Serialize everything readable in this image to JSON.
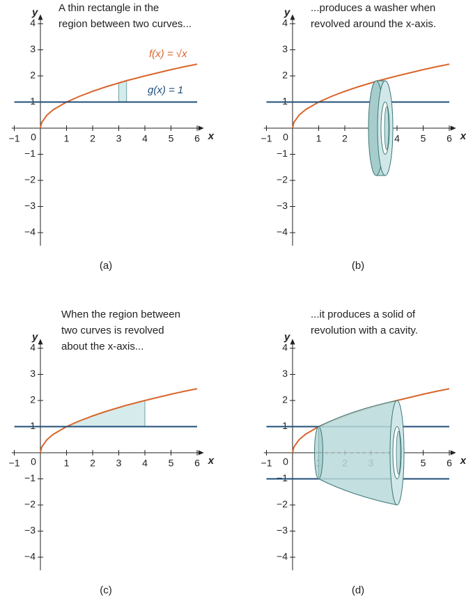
{
  "chart_data": [
    {
      "type": "line",
      "annotation": [
        "A thin rectangle in the",
        "region between two curves..."
      ],
      "caption": "(a)",
      "x_label": "x",
      "y_label": "y",
      "xlim": [
        -1.1,
        6.1
      ],
      "ylim": [
        -4.5,
        4.2
      ],
      "xticks": [
        {
          "value": -1,
          "label": "−1"
        },
        0,
        1,
        2,
        3,
        4,
        5,
        6
      ],
      "yticks": [
        {
          "value": -4,
          "label": "−4"
        },
        {
          "value": -3,
          "label": "−3"
        },
        {
          "value": -2,
          "label": "−2"
        },
        {
          "value": -1,
          "label": "−1"
        },
        1,
        2,
        3,
        4
      ],
      "series": [
        {
          "name": "f(x) = √x",
          "color": "#d9652b",
          "x": [
            0,
            0.05,
            0.25,
            0.5,
            1,
            1.5,
            2,
            2.5,
            3,
            3.3,
            3.5,
            4,
            4.5,
            5,
            5.5,
            6
          ],
          "values": [
            0,
            0.22,
            0.5,
            0.71,
            1,
            1.22,
            1.41,
            1.58,
            1.73,
            1.82,
            1.87,
            2,
            2.12,
            2.24,
            2.35,
            2.45
          ]
        },
        {
          "name": "g(x) = 1",
          "color": "#1f4e79",
          "x": [
            -1,
            6
          ],
          "values": [
            1,
            1
          ]
        }
      ],
      "shaded_x": [
        3,
        3.3
      ]
    },
    {
      "type": "line",
      "annotation": [
        "...produces a washer when",
        "revolved around the x-axis."
      ],
      "caption": "(b)",
      "x_label": "x",
      "y_label": "y",
      "xlim": [
        -1.1,
        6.1
      ],
      "ylim": [
        -4.5,
        4.2
      ],
      "xticks": [
        {
          "value": -1,
          "label": "−1"
        },
        0,
        1,
        2,
        3,
        4,
        5,
        6
      ],
      "yticks": [
        {
          "value": -4,
          "label": "−4"
        },
        {
          "value": -3,
          "label": "−3"
        },
        {
          "value": -2,
          "label": "−2"
        },
        {
          "value": -1,
          "label": "−1"
        },
        1,
        2,
        3,
        4
      ],
      "series": [
        {
          "color": "#d9652b",
          "x": [
            0,
            0.05,
            0.25,
            0.5,
            1,
            1.5,
            2,
            2.5,
            3,
            3.3,
            3.5,
            4,
            4.5,
            5,
            5.5,
            6
          ],
          "values": [
            0,
            0.22,
            0.5,
            0.71,
            1,
            1.22,
            1.41,
            1.58,
            1.73,
            1.82,
            1.87,
            2,
            2.12,
            2.24,
            2.35,
            2.45
          ]
        },
        {
          "color": "#1f4e79",
          "x": [
            -1,
            6
          ],
          "values": [
            1,
            1
          ]
        }
      ]
    },
    {
      "type": "line",
      "annotation": [
        "When the region between",
        "two curves is revolved",
        "about the x-axis..."
      ],
      "caption": "(c)",
      "x_label": "x",
      "y_label": "y",
      "xlim": [
        -1.1,
        6.1
      ],
      "ylim": [
        -4.5,
        4.2
      ],
      "xticks": [
        {
          "value": -1,
          "label": "−1"
        },
        0,
        1,
        2,
        3,
        4,
        5,
        6
      ],
      "yticks": [
        {
          "value": -4,
          "label": "−4"
        },
        {
          "value": -3,
          "label": "−3"
        },
        {
          "value": -2,
          "label": "−2"
        },
        {
          "value": -1,
          "label": "−1"
        },
        1,
        2,
        3,
        4
      ],
      "series": [
        {
          "color": "#d9652b",
          "x": [
            0,
            0.05,
            0.25,
            0.5,
            1,
            1.5,
            2,
            2.5,
            3,
            3.3,
            3.5,
            4,
            4.5,
            5,
            5.5,
            6
          ],
          "values": [
            0,
            0.22,
            0.5,
            0.71,
            1,
            1.22,
            1.41,
            1.58,
            1.73,
            1.82,
            1.87,
            2,
            2.12,
            2.24,
            2.35,
            2.45
          ]
        },
        {
          "color": "#1f4e79",
          "x": [
            -1,
            6
          ],
          "values": [
            1,
            1
          ]
        }
      ],
      "shaded_x": [
        1,
        4
      ]
    },
    {
      "type": "line",
      "annotation": [
        "...it produces a solid of",
        "revolution with a cavity."
      ],
      "caption": "(d)",
      "x_label": "x",
      "y_label": "y",
      "xlim": [
        -1.1,
        6.1
      ],
      "ylim": [
        -4.5,
        4.2
      ],
      "xticks": [
        {
          "value": -1,
          "label": "−1"
        },
        0,
        1,
        2,
        3,
        4,
        5,
        6
      ],
      "yticks": [
        {
          "value": -4,
          "label": "−4"
        },
        {
          "value": -3,
          "label": "−3"
        },
        {
          "value": -2,
          "label": "−2"
        },
        {
          "value": -1,
          "label": "−1"
        },
        1,
        2,
        3,
        4
      ],
      "series": [
        {
          "color": "#d9652b",
          "x": [
            0,
            0.05,
            0.25,
            0.5,
            1,
            1.5,
            2,
            2.5,
            3,
            3.3,
            3.5,
            4,
            4.5,
            5,
            5.5,
            6
          ],
          "values": [
            0,
            0.22,
            0.5,
            0.71,
            1,
            1.22,
            1.41,
            1.58,
            1.73,
            1.82,
            1.87,
            2,
            2.12,
            2.24,
            2.35,
            2.45
          ]
        },
        {
          "color": "#1f4e79",
          "x": [
            -1,
            6
          ],
          "values": [
            1,
            1
          ]
        },
        {
          "color": "#1f4e79",
          "x": [
            -1,
            6
          ],
          "values": [
            -1,
            -1
          ]
        }
      ]
    }
  ]
}
